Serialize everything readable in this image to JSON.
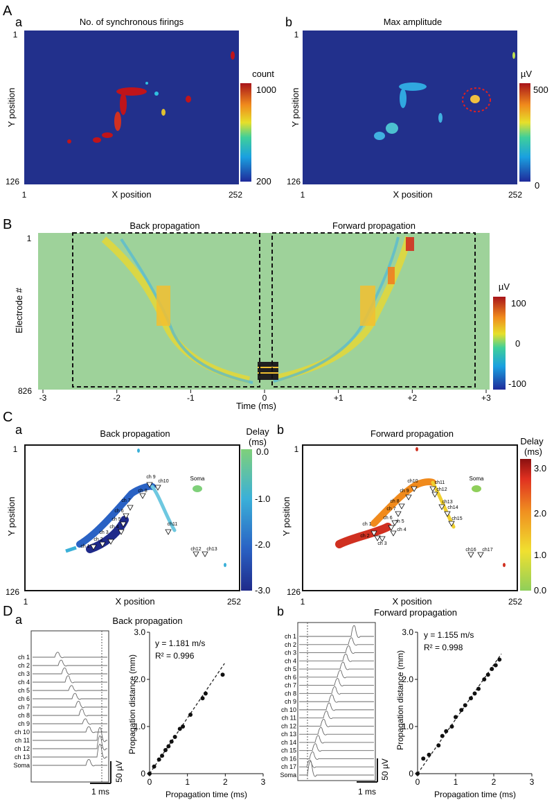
{
  "panelA": {
    "letter": "A",
    "a": {
      "sub": "a",
      "title": "No. of synchronous firings",
      "xlabel": "X position",
      "ylabel": "Y position",
      "xmin": "1",
      "xmax": "252",
      "ymin": "1",
      "ymax": "126",
      "cbar_unit": "count",
      "cbar_top": "1000",
      "cbar_bottom": "200"
    },
    "b": {
      "sub": "b",
      "title": "Max amplitude",
      "xlabel": "X position",
      "ylabel": "Y position",
      "xmin": "1",
      "xmax": "252",
      "ymin": "1",
      "ymax": "126",
      "cbar_unit": "µV",
      "cbar_top": "500",
      "cbar_bottom": "0"
    }
  },
  "panelB": {
    "letter": "B",
    "title_left": "Back propagation",
    "title_right": "Forward propagation",
    "ylabel": "Electrode #",
    "ytop": "1",
    "ybottom": "826",
    "xlabel": "Time (ms)",
    "xticks": [
      "-3",
      "-2",
      "-1",
      "0",
      "+1",
      "+2",
      "+3"
    ],
    "cbar_unit": "µV",
    "cbar_ticks": [
      "100",
      "0",
      "-100"
    ]
  },
  "panelC": {
    "letter": "C",
    "a": {
      "sub": "a",
      "title": "Back propagation",
      "xlabel": "X position",
      "ylabel": "Y position",
      "xmin": "1",
      "xmax": "252",
      "ymin": "1",
      "ymax": "126",
      "cbar_title1": "Delay",
      "cbar_title2": "(ms)",
      "cbar_ticks": [
        "0.0",
        "-1.0",
        "-2.0",
        "-3.0"
      ],
      "soma": "Soma",
      "channels": [
        "ch 1",
        "ch 2",
        "ch 3",
        "ch 4",
        "ch 5",
        "ch 6",
        "ch 7",
        "ch 8",
        "ch 9",
        "ch10",
        "ch11",
        "ch12",
        "ch13"
      ]
    },
    "b": {
      "sub": "b",
      "title": "Forward propagation",
      "xlabel": "X position",
      "ylabel": "Y position",
      "xmin": "1",
      "xmax": "252",
      "ymin": "1",
      "ymax": "126",
      "cbar_title1": "Delay",
      "cbar_title2": "(ms)",
      "cbar_ticks": [
        "3.0",
        "2.0",
        "1.0",
        "0.0"
      ],
      "soma": "Soma",
      "channels": [
        "ch 1",
        "ch 2",
        "ch 3",
        "ch 4",
        "ch 5",
        "ch 6",
        "ch 7",
        "ch 8",
        "ch 9",
        "ch10",
        "ch11",
        "ch12",
        "ch13",
        "ch14",
        "ch15",
        "ch16",
        "ch17"
      ]
    }
  },
  "panelD": {
    "letter": "D",
    "a": {
      "sub": "a",
      "title": "Back propagation",
      "trace_labels": [
        "ch  1",
        "ch  2",
        "ch  3",
        "ch  4",
        "ch  5",
        "ch  6",
        "ch  7",
        "ch  8",
        "ch  9",
        "ch 10",
        "ch 11",
        "ch 12",
        "ch 13",
        "Soma"
      ],
      "scale_time": "1 ms",
      "scale_volt": "50 µV",
      "eq": "y = 1.181 m/s",
      "r2": "R² = 0.996",
      "xlabel": "Propagation time (ms)",
      "ylabel": "Propagation distance (mm)"
    },
    "b": {
      "sub": "b",
      "title": "Forward propagation",
      "trace_labels": [
        "ch  1",
        "ch  2",
        "ch  3",
        "ch  4",
        "ch  5",
        "ch  6",
        "ch  7",
        "ch  8",
        "ch  9",
        "ch 10",
        "ch 11",
        "ch 12",
        "ch 13",
        "ch 14",
        "ch 15",
        "ch 16",
        "ch 17",
        "Soma"
      ],
      "scale_time": "1 ms",
      "scale_volt": "50 µV",
      "eq": "y = 1.155 m/s",
      "r2": "R² = 0.998",
      "xlabel": "Propagation time (ms)",
      "ylabel": "Propagation distance (mm)"
    }
  },
  "chart_data": [
    {
      "type": "scatter",
      "title": "Back propagation",
      "xlabel": "Propagation time (ms)",
      "ylabel": "Propagation distance (mm)",
      "xlim": [
        0,
        3
      ],
      "ylim": [
        0,
        3
      ],
      "xticks": [
        "0",
        "1",
        "2",
        "3"
      ],
      "yticks": [
        "0",
        "1.0",
        "2.0",
        "3.0"
      ],
      "fit_slope": 1.181,
      "x": [
        0.0,
        0.12,
        0.25,
        0.33,
        0.42,
        0.5,
        0.58,
        0.67,
        0.8,
        0.88,
        1.08,
        1.4,
        1.48,
        1.93
      ],
      "y": [
        0.0,
        0.15,
        0.3,
        0.38,
        0.5,
        0.58,
        0.68,
        0.78,
        0.95,
        1.0,
        1.25,
        1.6,
        1.7,
        2.1
      ]
    },
    {
      "type": "scatter",
      "title": "Forward propagation",
      "xlabel": "Propagation time (ms)",
      "ylabel": "Propagation distance (mm)",
      "xlim": [
        0,
        3
      ],
      "ylim": [
        0,
        3
      ],
      "xticks": [
        "0",
        "1",
        "2",
        "3"
      ],
      "yticks": [
        "0",
        "1.0",
        "2.0",
        "3.0"
      ],
      "fit_slope": 1.155,
      "x": [
        0.0,
        0.15,
        0.3,
        0.55,
        0.65,
        0.75,
        0.9,
        1.0,
        1.15,
        1.25,
        1.4,
        1.5,
        1.6,
        1.75,
        1.85,
        1.95,
        2.05,
        2.15
      ],
      "y": [
        0.0,
        0.32,
        0.4,
        0.6,
        0.8,
        0.9,
        1.0,
        1.2,
        1.35,
        1.45,
        1.6,
        1.7,
        1.8,
        2.0,
        2.1,
        2.22,
        2.3,
        2.42
      ]
    }
  ]
}
